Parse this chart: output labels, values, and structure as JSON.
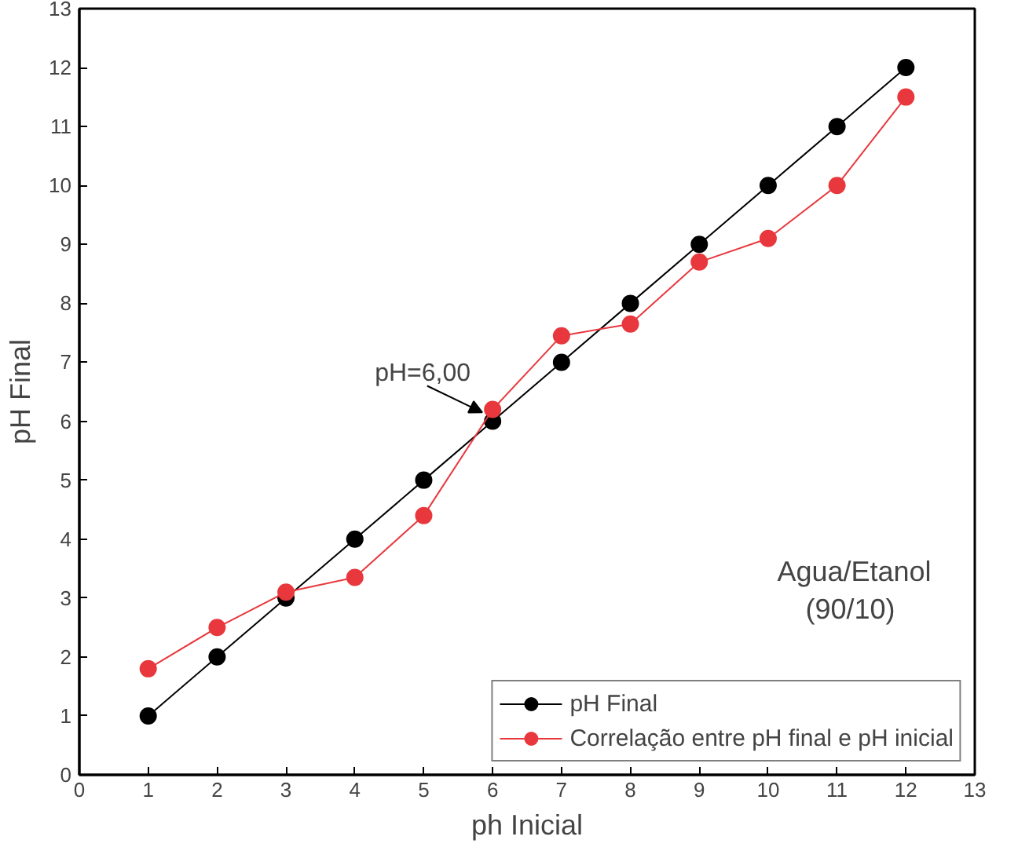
{
  "chart_data": {
    "type": "line",
    "xlabel": "ph Inicial",
    "ylabel": "pH Final",
    "x": [
      1,
      2,
      3,
      4,
      5,
      6,
      7,
      8,
      9,
      10,
      11,
      12
    ],
    "series": [
      {
        "name": "pH Final",
        "color": "#000000",
        "values": [
          1,
          2,
          3,
          4,
          5,
          6,
          7,
          8,
          9,
          10,
          11,
          12
        ]
      },
      {
        "name": "Correlação entre pH final e pH inicial",
        "color": "#e8383d",
        "values": [
          1.8,
          2.5,
          3.1,
          3.35,
          4.4,
          6.2,
          7.45,
          7.65,
          8.7,
          9.1,
          10.0,
          11.5
        ]
      }
    ],
    "xlim": [
      0,
      13
    ],
    "ylim": [
      0,
      13
    ],
    "xticks": [
      0,
      1,
      2,
      3,
      4,
      5,
      6,
      7,
      8,
      9,
      10,
      11,
      12,
      13
    ],
    "yticks": [
      0,
      1,
      2,
      3,
      4,
      5,
      6,
      7,
      8,
      9,
      10,
      11,
      12,
      13
    ],
    "annotations": [
      {
        "text": "pH=6,00",
        "x": 6,
        "y": 6
      },
      "Agua/Etanol\n (90/10)"
    ],
    "grid": false,
    "legend": "bottom right",
    "marker": "circle",
    "line_style": "solid"
  }
}
